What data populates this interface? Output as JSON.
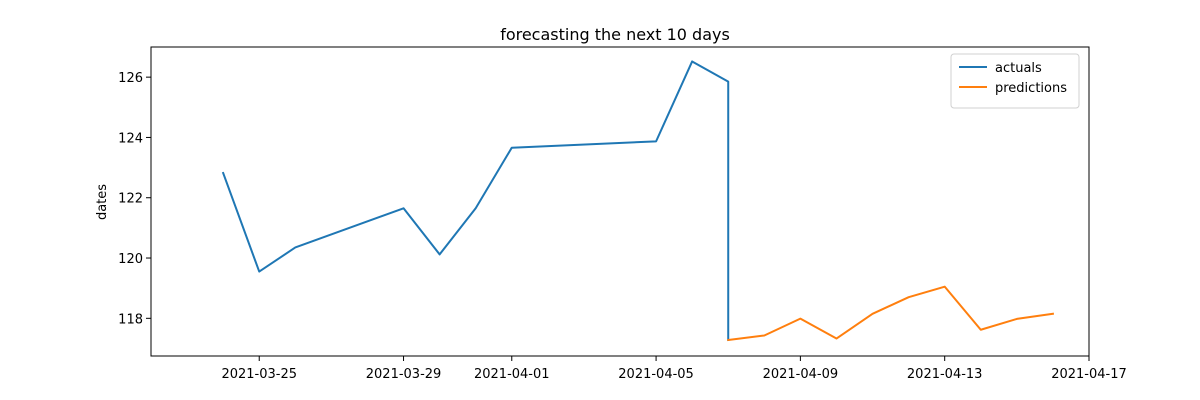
{
  "chart_data": {
    "type": "line",
    "title": "forecasting the next 10 days",
    "xlabel": "",
    "ylabel": "dates",
    "x_axis_type": "date",
    "xlim": [
      "2021-03-22",
      "2021-04-17"
    ],
    "ylim": [
      116.75,
      127
    ],
    "x_ticks": [
      "2021-03-25",
      "2021-03-29",
      "2021-04-01",
      "2021-04-05",
      "2021-04-09",
      "2021-04-13",
      "2021-04-17"
    ],
    "y_ticks": [
      118,
      120,
      122,
      124,
      126
    ],
    "grid": false,
    "legend_position": "top-right",
    "series": [
      {
        "name": "actuals",
        "color": "#1f77b4",
        "points": [
          {
            "x": "2021-03-24",
            "y": 122.82
          },
          {
            "x": "2021-03-25",
            "y": 119.55
          },
          {
            "x": "2021-03-26",
            "y": 120.35
          },
          {
            "x": "2021-03-29",
            "y": 121.65
          },
          {
            "x": "2021-03-30",
            "y": 120.12
          },
          {
            "x": "2021-03-31",
            "y": 121.65
          },
          {
            "x": "2021-04-01",
            "y": 123.66
          },
          {
            "x": "2021-04-05",
            "y": 123.87
          },
          {
            "x": "2021-04-06",
            "y": 126.52
          },
          {
            "x": "2021-04-07",
            "y": 125.85
          },
          {
            "x": "2021-04-07",
            "y": 117.28
          }
        ]
      },
      {
        "name": "predictions",
        "color": "#ff7f0e",
        "points": [
          {
            "x": "2021-04-07",
            "y": 117.28
          },
          {
            "x": "2021-04-08",
            "y": 117.43
          },
          {
            "x": "2021-04-09",
            "y": 117.99
          },
          {
            "x": "2021-04-10",
            "y": 117.33
          },
          {
            "x": "2021-04-11",
            "y": 118.15
          },
          {
            "x": "2021-04-12",
            "y": 118.7
          },
          {
            "x": "2021-04-13",
            "y": 119.05
          },
          {
            "x": "2021-04-14",
            "y": 117.62
          },
          {
            "x": "2021-04-15",
            "y": 117.98
          },
          {
            "x": "2021-04-16",
            "y": 118.15
          }
        ]
      }
    ]
  }
}
